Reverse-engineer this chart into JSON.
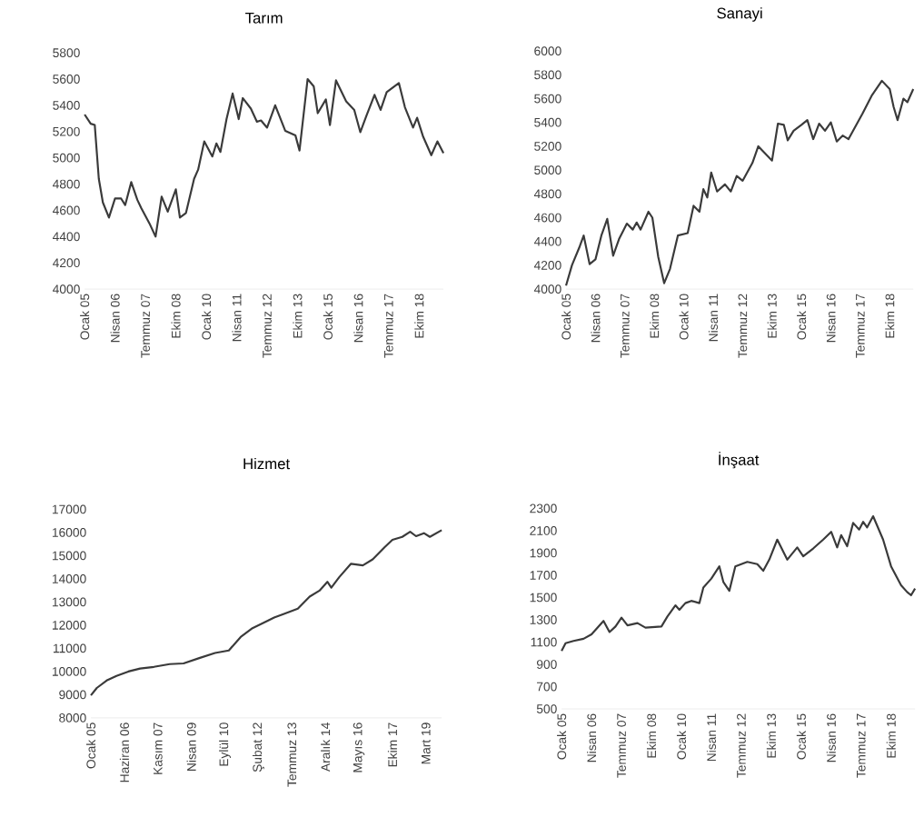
{
  "chart_data": [
    {
      "type": "line",
      "title": "Tarım",
      "color": "#3a3a3a",
      "xlim": [
        "2005-01",
        "2019-10"
      ],
      "ylim": [
        4000,
        5800
      ],
      "yticks": [
        4000,
        4200,
        4400,
        4600,
        4800,
        5000,
        5200,
        5400,
        5600,
        5800
      ],
      "xticks": [
        {
          "value": "2005-01",
          "label": "Ocak 05"
        },
        {
          "value": "2006-04",
          "label": "Nisan 06"
        },
        {
          "value": "2007-07",
          "label": "Temmuz 07"
        },
        {
          "value": "2008-10",
          "label": "Ekim 08"
        },
        {
          "value": "2010-01",
          "label": "Ocak 10"
        },
        {
          "value": "2011-04",
          "label": "Nisan 11"
        },
        {
          "value": "2012-07",
          "label": "Temmuz 12"
        },
        {
          "value": "2013-10",
          "label": "Ekim 13"
        },
        {
          "value": "2015-01",
          "label": "Ocak 15"
        },
        {
          "value": "2016-04",
          "label": "Nisan 16"
        },
        {
          "value": "2017-07",
          "label": "Temmuz 17"
        },
        {
          "value": "2018-10",
          "label": "Ekim 18"
        }
      ],
      "x": [
        "2005-01",
        "2005-04",
        "2005-06",
        "2005-08",
        "2005-10",
        "2006-01",
        "2006-04",
        "2006-07",
        "2006-09",
        "2006-12",
        "2007-03",
        "2007-05",
        "2007-09",
        "2007-12",
        "2008-03",
        "2008-06",
        "2008-10",
        "2008-12",
        "2009-03",
        "2009-07",
        "2009-09",
        "2009-12",
        "2010-04",
        "2010-06",
        "2010-08",
        "2010-11",
        "2011-02",
        "2011-05",
        "2011-07",
        "2011-11",
        "2012-02",
        "2012-04",
        "2012-07",
        "2012-11",
        "2013-04",
        "2013-09",
        "2013-11",
        "2014-03",
        "2014-06",
        "2014-08",
        "2014-12",
        "2015-02",
        "2015-05",
        "2015-10",
        "2016-02",
        "2016-05",
        "2016-08",
        "2016-12",
        "2017-03",
        "2017-06",
        "2017-12",
        "2018-03",
        "2018-07",
        "2018-09",
        "2018-12",
        "2019-04",
        "2019-07",
        "2019-10"
      ],
      "values": [
        5330,
        5260,
        5250,
        4840,
        4660,
        4545,
        4690,
        4690,
        4640,
        4815,
        4680,
        4615,
        4500,
        4400,
        4705,
        4590,
        4760,
        4545,
        4580,
        4840,
        4910,
        5125,
        5010,
        5110,
        5045,
        5295,
        5490,
        5295,
        5455,
        5375,
        5275,
        5285,
        5230,
        5400,
        5205,
        5170,
        5055,
        5600,
        5545,
        5340,
        5445,
        5250,
        5590,
        5430,
        5365,
        5195,
        5320,
        5480,
        5365,
        5500,
        5570,
        5385,
        5230,
        5305,
        5160,
        5020,
        5125,
        5035
      ]
    },
    {
      "type": "line",
      "title": "Sanayi",
      "color": "#3a3a3a",
      "xlim": [
        "2005-01",
        "2019-10"
      ],
      "ylim": [
        4000,
        6000
      ],
      "yticks": [
        4000,
        4200,
        4400,
        4600,
        4800,
        5000,
        5200,
        5400,
        5600,
        5800,
        6000
      ],
      "xticks": [
        {
          "value": "2005-01",
          "label": "Ocak 05"
        },
        {
          "value": "2006-04",
          "label": "Nisan 06"
        },
        {
          "value": "2007-07",
          "label": "Temmuz 07"
        },
        {
          "value": "2008-10",
          "label": "Ekim 08"
        },
        {
          "value": "2010-01",
          "label": "Ocak 10"
        },
        {
          "value": "2011-04",
          "label": "Nisan 11"
        },
        {
          "value": "2012-07",
          "label": "Temmuz 12"
        },
        {
          "value": "2013-10",
          "label": "Ekim 13"
        },
        {
          "value": "2015-01",
          "label": "Ocak 15"
        },
        {
          "value": "2016-04",
          "label": "Nisan 16"
        },
        {
          "value": "2017-07",
          "label": "Temmuz 17"
        },
        {
          "value": "2018-10",
          "label": "Ekim 18"
        }
      ],
      "x": [
        "2005-01",
        "2005-04",
        "2005-08",
        "2005-10",
        "2006-01",
        "2006-04",
        "2006-07",
        "2006-10",
        "2007-01",
        "2007-04",
        "2007-08",
        "2007-11",
        "2008-01",
        "2008-03",
        "2008-07",
        "2008-09",
        "2008-12",
        "2009-03",
        "2009-06",
        "2009-10",
        "2010-03",
        "2010-06",
        "2010-09",
        "2010-11",
        "2011-01",
        "2011-03",
        "2011-06",
        "2011-10",
        "2012-01",
        "2012-04",
        "2012-07",
        "2012-12",
        "2013-03",
        "2013-07",
        "2013-10",
        "2014-01",
        "2014-04",
        "2014-06",
        "2014-09",
        "2015-01",
        "2015-04",
        "2015-07",
        "2015-10",
        "2016-01",
        "2016-04",
        "2016-07",
        "2016-10",
        "2017-01",
        "2017-05",
        "2017-08",
        "2018-01",
        "2018-06",
        "2018-10",
        "2018-12",
        "2019-02",
        "2019-05",
        "2019-07",
        "2019-10"
      ],
      "values": [
        4030,
        4200,
        4360,
        4450,
        4210,
        4250,
        4450,
        4590,
        4280,
        4420,
        4550,
        4500,
        4560,
        4500,
        4650,
        4600,
        4270,
        4050,
        4170,
        4450,
        4470,
        4700,
        4650,
        4840,
        4770,
        4980,
        4820,
        4880,
        4820,
        4950,
        4910,
        5060,
        5200,
        5130,
        5080,
        5390,
        5380,
        5250,
        5330,
        5380,
        5420,
        5260,
        5390,
        5330,
        5400,
        5240,
        5290,
        5260,
        5380,
        5470,
        5630,
        5750,
        5680,
        5530,
        5420,
        5600,
        5570,
        5680
      ]
    },
    {
      "type": "line",
      "title": "Hizmet",
      "color": "#3a3a3a",
      "xlim": [
        "2005-01",
        "2019-11"
      ],
      "ylim": [
        8000,
        17000
      ],
      "yticks": [
        8000,
        9000,
        10000,
        11000,
        12000,
        13000,
        14000,
        15000,
        16000,
        17000
      ],
      "xticks": [
        {
          "value": "2005-01",
          "label": "Ocak 05"
        },
        {
          "value": "2006-06",
          "label": "Haziran 06"
        },
        {
          "value": "2007-11",
          "label": "Kasım 07"
        },
        {
          "value": "2009-04",
          "label": "Nisan 09"
        },
        {
          "value": "2010-09",
          "label": "Eylül 10"
        },
        {
          "value": "2012-02",
          "label": "Şubat 12"
        },
        {
          "value": "2013-07",
          "label": "Temmuz 13"
        },
        {
          "value": "2014-12",
          "label": "Aralık 14"
        },
        {
          "value": "2016-05",
          "label": "Mayıs 16"
        },
        {
          "value": "2017-10",
          "label": "Ekim 17"
        },
        {
          "value": "2019-03",
          "label": "Mart 19"
        }
      ],
      "x": [
        "2005-01",
        "2005-04",
        "2005-09",
        "2006-02",
        "2006-08",
        "2007-02",
        "2007-09",
        "2008-05",
        "2008-12",
        "2009-08",
        "2010-04",
        "2010-11",
        "2011-05",
        "2011-11",
        "2012-07",
        "2012-10",
        "2013-03",
        "2013-10",
        "2014-04",
        "2014-09",
        "2015-01",
        "2015-03",
        "2015-07",
        "2016-01",
        "2016-07",
        "2016-12",
        "2017-06",
        "2017-10",
        "2018-03",
        "2018-07",
        "2018-10",
        "2019-02",
        "2019-05",
        "2019-11"
      ],
      "values": [
        8970,
        9290,
        9610,
        9810,
        10000,
        10130,
        10200,
        10320,
        10350,
        10580,
        10800,
        10910,
        11490,
        11870,
        12200,
        12330,
        12490,
        12710,
        13230,
        13490,
        13870,
        13620,
        14070,
        14650,
        14580,
        14840,
        15360,
        15680,
        15810,
        16030,
        15840,
        15970,
        15810,
        16100
      ]
    },
    {
      "type": "line",
      "title": "İnşaat",
      "color": "#3a3a3a",
      "xlim": [
        "2005-01",
        "2019-10"
      ],
      "ylim": [
        500,
        2300
      ],
      "yticks": [
        500,
        700,
        900,
        1100,
        1300,
        1500,
        1700,
        1900,
        2100,
        2300
      ],
      "xticks": [
        {
          "value": "2005-01",
          "label": "Ocak 05"
        },
        {
          "value": "2006-04",
          "label": "Nisan 06"
        },
        {
          "value": "2007-07",
          "label": "Temmuz 07"
        },
        {
          "value": "2008-10",
          "label": "Ekim 08"
        },
        {
          "value": "2010-01",
          "label": "Ocak 10"
        },
        {
          "value": "2011-04",
          "label": "Nisan 11"
        },
        {
          "value": "2012-07",
          "label": "Temmuz 12"
        },
        {
          "value": "2013-10",
          "label": "Ekim 13"
        },
        {
          "value": "2015-01",
          "label": "Ocak 15"
        },
        {
          "value": "2016-04",
          "label": "Nisan 16"
        },
        {
          "value": "2017-07",
          "label": "Temmuz 17"
        },
        {
          "value": "2018-10",
          "label": "Ekim 18"
        }
      ],
      "x": [
        "2005-01",
        "2005-03",
        "2005-07",
        "2005-12",
        "2006-04",
        "2006-10",
        "2007-01",
        "2007-04",
        "2007-07",
        "2007-10",
        "2008-03",
        "2008-07",
        "2009-03",
        "2009-06",
        "2009-10",
        "2009-12",
        "2010-03",
        "2010-06",
        "2010-10",
        "2010-12",
        "2011-04",
        "2011-08",
        "2011-10",
        "2012-01",
        "2012-04",
        "2012-10",
        "2013-03",
        "2013-06",
        "2013-09",
        "2014-01",
        "2014-06",
        "2014-11",
        "2015-02",
        "2015-07",
        "2015-12",
        "2016-04",
        "2016-07",
        "2016-09",
        "2016-12",
        "2017-03",
        "2017-06",
        "2017-08",
        "2017-10",
        "2018-01",
        "2018-06",
        "2018-10",
        "2019-03",
        "2019-06",
        "2019-08",
        "2019-10"
      ],
      "values": [
        1020,
        1090,
        1110,
        1130,
        1170,
        1290,
        1190,
        1240,
        1320,
        1250,
        1270,
        1230,
        1240,
        1330,
        1430,
        1390,
        1450,
        1470,
        1450,
        1590,
        1670,
        1780,
        1640,
        1560,
        1780,
        1820,
        1800,
        1740,
        1840,
        2020,
        1840,
        1950,
        1870,
        1940,
        2020,
        2090,
        1950,
        2060,
        1960,
        2170,
        2110,
        2180,
        2130,
        2230,
        2020,
        1780,
        1610,
        1550,
        1520,
        1580
      ]
    }
  ]
}
